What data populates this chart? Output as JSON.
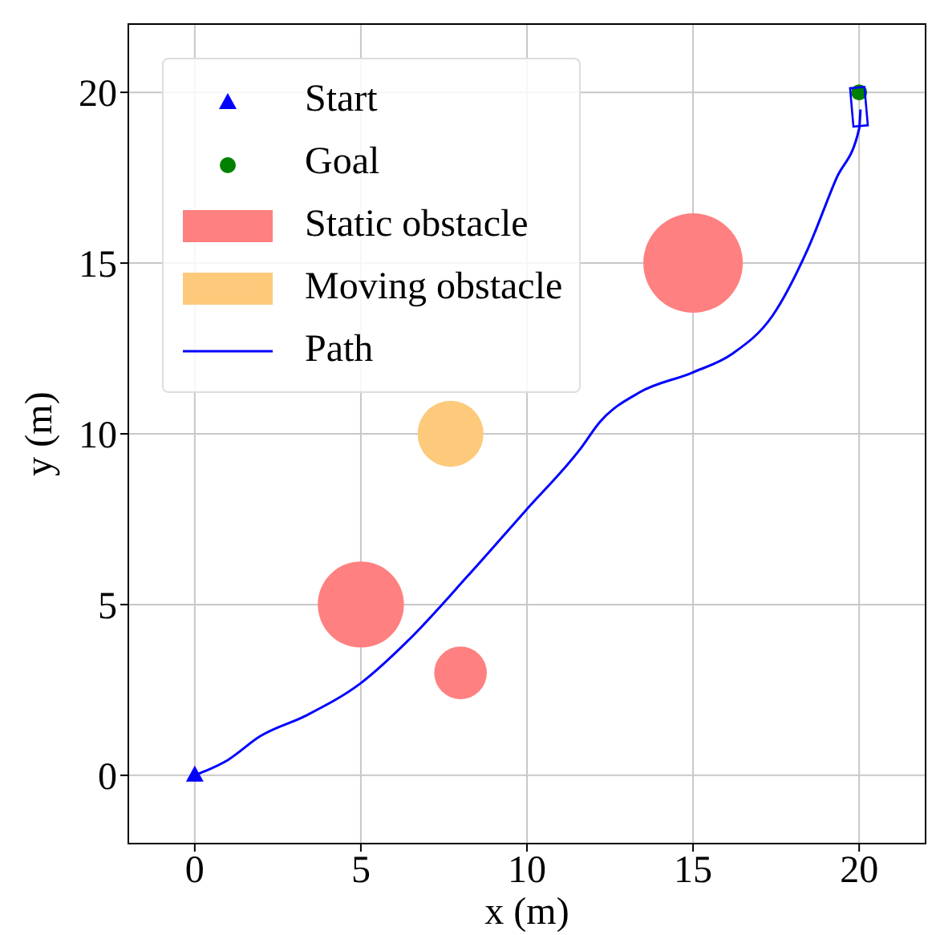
{
  "chart_data": {
    "type": "scatter",
    "xlabel": "x (m)",
    "ylabel": "y (m)",
    "xlim": [
      -2,
      22
    ],
    "ylim": [
      -2,
      22
    ],
    "xticks": [
      0,
      5,
      10,
      15,
      20
    ],
    "yticks": [
      0,
      5,
      10,
      15,
      20
    ],
    "grid": true,
    "legend": "top left",
    "series": [
      {
        "name": "Start",
        "marker": "triangle",
        "color": "#0000ff",
        "x": [
          0
        ],
        "values": [
          0
        ]
      },
      {
        "name": "Goal",
        "marker": "circle",
        "color": "#008000",
        "x": [
          20
        ],
        "values": [
          20
        ]
      },
      {
        "name": "Static obstacle",
        "type": "bubble",
        "color": "#ff8080",
        "x": [
          5,
          8,
          15
        ],
        "values": [
          5,
          3,
          15
        ],
        "sizes": [
          0.75,
          0.28,
          1
        ]
      },
      {
        "name": "Moving obstacle",
        "type": "bubble",
        "color": "#fdca7b",
        "x": [
          7.7
        ],
        "values": [
          10
        ],
        "sizes": [
          0.44
        ]
      },
      {
        "name": "Path",
        "type": "line",
        "marker": "none",
        "color": "#0000ff",
        "x": [
          0,
          1,
          1.96,
          3.35,
          5.0,
          6.48,
          8.21,
          9.94,
          11.6,
          12.2,
          13.4,
          14.97,
          16.19,
          17.4,
          18.44,
          19.31,
          20.0,
          20.04
        ],
        "values": [
          0,
          0.45,
          1.14,
          1.75,
          2.7,
          4.0,
          5.83,
          7.73,
          9.55,
          10.35,
          11.22,
          11.79,
          12.35,
          13.47,
          15.38,
          17.47,
          18.94,
          19.5
        ]
      }
    ]
  }
}
